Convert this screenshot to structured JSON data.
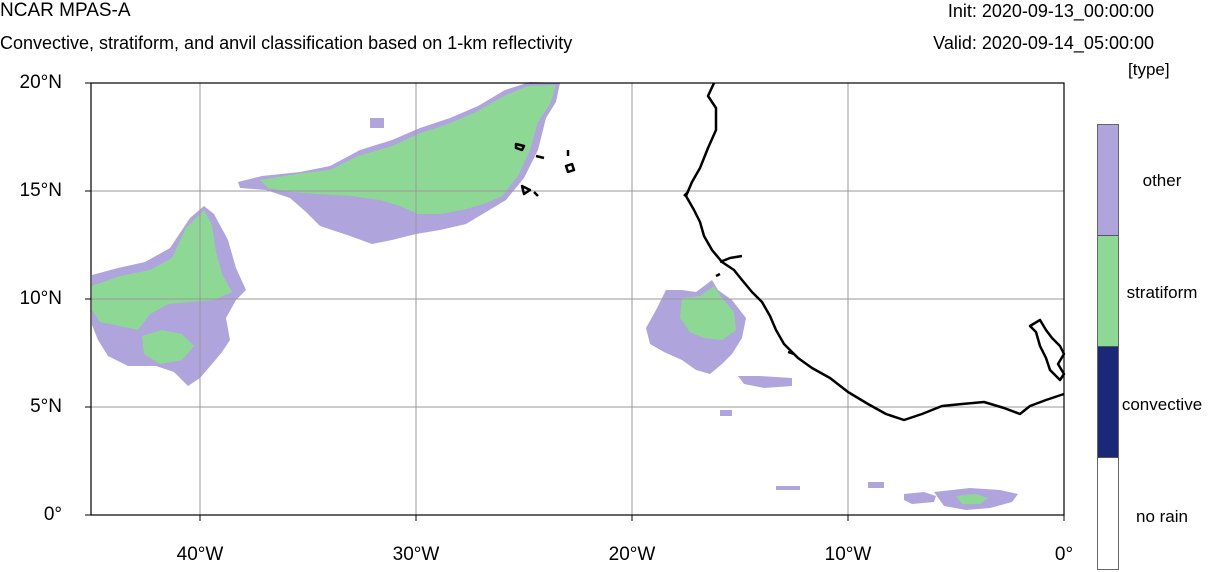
{
  "header": {
    "title": "NCAR MPAS-A",
    "subtitle": "Convective, stratiform, and anvil classification based on 1-km reflectivity",
    "init": "Init: 2020-09-13_00:00:00",
    "valid": "Valid: 2020-09-14_05:00:00",
    "units": "[type]"
  },
  "axes": {
    "lat_labels": [
      "20°N",
      "15°N",
      "10°N",
      "5°N",
      "0°"
    ],
    "lon_labels": [
      "40°W",
      "30°W",
      "20°W",
      "10°W",
      "0°"
    ],
    "lon_range": [
      -45,
      0
    ],
    "lat_range": [
      0,
      20
    ],
    "grid": true
  },
  "legend": {
    "items": [
      {
        "label": "other",
        "color": "#b0a4dc"
      },
      {
        "label": "stratiform",
        "color": "#8ed896"
      },
      {
        "label": "convective",
        "color": "#1a2878"
      },
      {
        "label": "no rain",
        "color": "#ffffff"
      }
    ]
  },
  "colors": {
    "other": "#b0a4dc",
    "stratiform": "#8ed896",
    "coastline": "#000000",
    "grid": "#999999"
  }
}
